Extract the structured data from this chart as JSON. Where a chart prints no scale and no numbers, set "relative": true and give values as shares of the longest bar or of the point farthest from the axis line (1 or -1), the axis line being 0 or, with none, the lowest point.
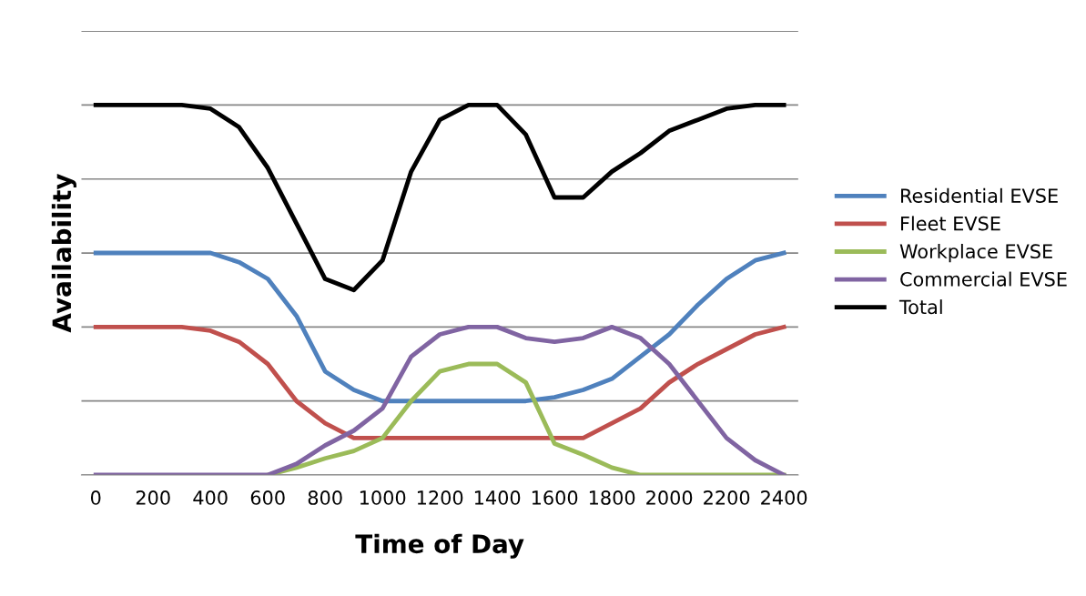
{
  "chart_data": {
    "type": "line",
    "xlabel": "Time of Day",
    "ylabel": "Availability",
    "relative": true,
    "x": [
      0,
      100,
      200,
      300,
      400,
      500,
      600,
      700,
      800,
      900,
      1000,
      1100,
      1200,
      1300,
      1400,
      1500,
      1600,
      1700,
      1800,
      1900,
      2000,
      2100,
      2200,
      2300,
      2400
    ],
    "xlim": [
      -50,
      2450
    ],
    "xticks": [
      0,
      200,
      400,
      600,
      800,
      1000,
      1200,
      1400,
      1600,
      1800,
      2000,
      2200,
      2400
    ],
    "series": [
      {
        "name": "Residential EVSE",
        "color": "#4f81bd",
        "values": [
          0.6,
          0.6,
          0.6,
          0.6,
          0.6,
          0.575,
          0.53,
          0.43,
          0.28,
          0.23,
          0.2,
          0.2,
          0.2,
          0.2,
          0.2,
          0.2,
          0.21,
          0.23,
          0.26,
          0.32,
          0.38,
          0.46,
          0.53,
          0.58,
          0.6
        ]
      },
      {
        "name": "Fleet EVSE",
        "color": "#c0504d",
        "values": [
          0.4,
          0.4,
          0.4,
          0.4,
          0.39,
          0.36,
          0.3,
          0.2,
          0.14,
          0.1,
          0.1,
          0.1,
          0.1,
          0.1,
          0.1,
          0.1,
          0.1,
          0.1,
          0.14,
          0.18,
          0.25,
          0.3,
          0.34,
          0.38,
          0.4
        ]
      },
      {
        "name": "Workplace EVSE",
        "color": "#9bbb59",
        "values": [
          null,
          null,
          null,
          null,
          null,
          null,
          0,
          0.02,
          0.045,
          0.065,
          0.1,
          0.2,
          0.28,
          0.3,
          0.3,
          0.25,
          0.085,
          0.055,
          0.02,
          0,
          0,
          0,
          0,
          0,
          0
        ]
      },
      {
        "name": "Commercial EVSE",
        "color": "#8064a2",
        "values": [
          0,
          0,
          0,
          0,
          0,
          0,
          0,
          0.03,
          0.08,
          0.12,
          0.18,
          0.32,
          0.38,
          0.4,
          0.4,
          0.37,
          0.36,
          0.37,
          0.4,
          0.37,
          0.3,
          0.2,
          0.1,
          0.04,
          0
        ]
      },
      {
        "name": "Total",
        "color": "#000000",
        "values": [
          1,
          1,
          1,
          1,
          0.99,
          0.94,
          0.83,
          0.68,
          0.53,
          0.5,
          0.58,
          0.82,
          0.96,
          1,
          1,
          0.92,
          0.75,
          0.75,
          0.82,
          0.87,
          0.93,
          0.96,
          0.99,
          1,
          1
        ]
      }
    ],
    "grid": "y",
    "legend": "right",
    "marker": "none",
    "line_style": "solid"
  }
}
